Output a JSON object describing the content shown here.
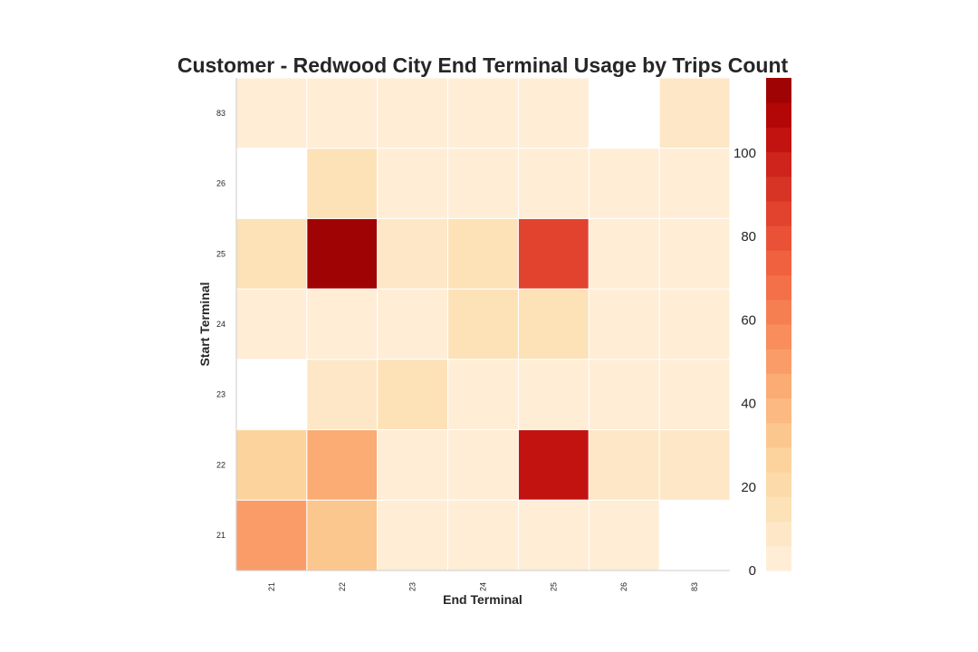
{
  "chart_data": {
    "type": "heatmap",
    "title": "Customer - Redwood City End Terminal Usage by Trips Count",
    "xlabel": "End Terminal",
    "ylabel": "Start Terminal",
    "x_categories": [
      "21",
      "22",
      "23",
      "24",
      "25",
      "26",
      "83"
    ],
    "y_categories": [
      "83",
      "26",
      "25",
      "24",
      "23",
      "22",
      "21"
    ],
    "values": [
      [
        5,
        5,
        3,
        3,
        3,
        null,
        8
      ],
      [
        null,
        12,
        3,
        3,
        3,
        3,
        3
      ],
      [
        14,
        118,
        8,
        12,
        87,
        5,
        3
      ],
      [
        5,
        3,
        3,
        14,
        15,
        3,
        5
      ],
      [
        null,
        6,
        12,
        3,
        5,
        3,
        3
      ],
      [
        28,
        45,
        5,
        5,
        103,
        8,
        7
      ],
      [
        50,
        30,
        2,
        5,
        3,
        3,
        null
      ]
    ],
    "colorbar": {
      "min": 0,
      "max": 118,
      "ticks": [
        0,
        20,
        40,
        60,
        80,
        100
      ],
      "colormap": "OrRd",
      "levels": 20
    },
    "grid": false
  }
}
